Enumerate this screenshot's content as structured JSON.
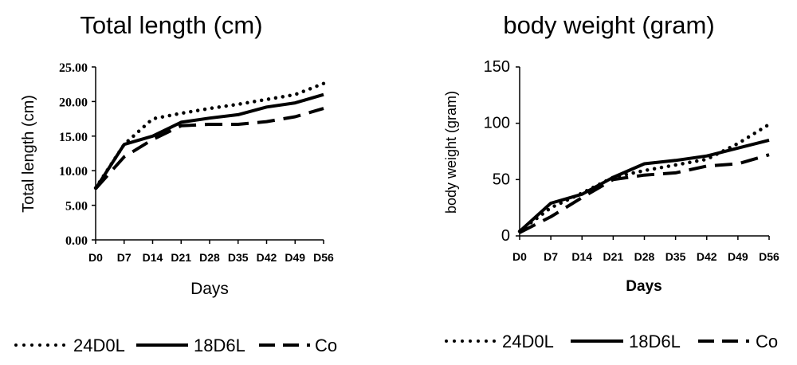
{
  "chart_data": [
    {
      "type": "line",
      "title": "Total length (cm)",
      "xlabel": "Days",
      "ylabel": "Total length (cm)",
      "ylim": [
        0,
        25
      ],
      "yticks": [
        "0.00",
        "5.00",
        "10.00",
        "15.00",
        "20.00",
        "25.00"
      ],
      "categories": [
        "D0",
        "D7",
        "D14",
        "D21",
        "D28",
        "D35",
        "D42",
        "D49",
        "D56"
      ],
      "grid": false,
      "legend_position": "bottom",
      "series": [
        {
          "name": "24D0L",
          "style": "dotted",
          "values": [
            7.5,
            13.8,
            17.5,
            18.3,
            19.0,
            19.6,
            20.3,
            21.0,
            22.6
          ]
        },
        {
          "name": "18D6L",
          "style": "solid",
          "values": [
            7.4,
            13.8,
            15.0,
            17.0,
            17.6,
            18.1,
            19.2,
            19.8,
            21.0
          ]
        },
        {
          "name": "Co",
          "style": "dashed",
          "values": [
            7.4,
            12.0,
            14.5,
            16.5,
            16.7,
            16.7,
            17.1,
            17.8,
            19.0
          ]
        }
      ]
    },
    {
      "type": "line",
      "title": "body weight (gram)",
      "xlabel": "Days",
      "ylabel": "body weight (gram)",
      "ylim": [
        0,
        150
      ],
      "yticks": [
        "0",
        "50",
        "100",
        "150"
      ],
      "categories": [
        "D0",
        "D7",
        "D14",
        "D21",
        "D28",
        "D35",
        "D42",
        "D49",
        "D56"
      ],
      "grid": false,
      "legend_position": "bottom",
      "series": [
        {
          "name": "24D0L",
          "style": "dotted",
          "values": [
            4,
            25,
            38,
            52,
            58,
            63,
            68,
            82,
            99
          ]
        },
        {
          "name": "18D6L",
          "style": "solid",
          "values": [
            4,
            29,
            37,
            52,
            64,
            67,
            71,
            78,
            85
          ]
        },
        {
          "name": "Co",
          "style": "dashed",
          "values": [
            3,
            17,
            34,
            50,
            54,
            56,
            62,
            64,
            72
          ]
        }
      ]
    }
  ]
}
